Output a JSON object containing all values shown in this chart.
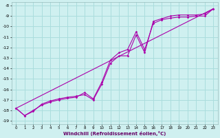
{
  "xlabel": "Windchill (Refroidissement éolien,°C)",
  "xlim": [
    -0.5,
    23.5
  ],
  "ylim": [
    -19.3,
    -7.7
  ],
  "yticks": [
    -19,
    -18,
    -17,
    -16,
    -15,
    -14,
    -13,
    -12,
    -11,
    -10,
    -9,
    -8
  ],
  "xticks": [
    0,
    1,
    2,
    3,
    4,
    5,
    6,
    7,
    8,
    9,
    10,
    11,
    12,
    13,
    14,
    15,
    16,
    17,
    18,
    19,
    20,
    21,
    22,
    23
  ],
  "bg_color": "#cff0f0",
  "line_color": "#aa00aa",
  "grid_color": "#aadddd",
  "line1_x": [
    0,
    1,
    2,
    3,
    4,
    5,
    6,
    7,
    8,
    9,
    10,
    11,
    12,
    13,
    14,
    15,
    16,
    17,
    18,
    19,
    20,
    21,
    22,
    23
  ],
  "line1_y": [
    -17.8,
    -18.5,
    -18.0,
    -17.5,
    -17.2,
    -17.0,
    -16.85,
    -16.75,
    -16.3,
    -16.9,
    -15.3,
    -13.2,
    -12.5,
    -12.2,
    -10.5,
    -12.2,
    -9.7,
    -9.35,
    -9.2,
    -9.1,
    -9.1,
    -9.0,
    -9.0,
    -8.3
  ],
  "line2_x": [
    0,
    1,
    2,
    3,
    4,
    5,
    6,
    7,
    8,
    9,
    10,
    11,
    12,
    13,
    14,
    15,
    16,
    17,
    18,
    19,
    20,
    21,
    22,
    23
  ],
  "line2_y": [
    -17.8,
    -18.5,
    -18.1,
    -17.4,
    -17.1,
    -16.9,
    -16.75,
    -16.65,
    -16.5,
    -17.0,
    -15.5,
    -13.5,
    -12.8,
    -12.8,
    -10.8,
    -12.5,
    -9.5,
    -9.25,
    -9.0,
    -8.9,
    -8.9,
    -8.9,
    -8.8,
    -8.3
  ],
  "line3_x": [
    0,
    23
  ],
  "line3_y": [
    -17.8,
    -8.3
  ]
}
